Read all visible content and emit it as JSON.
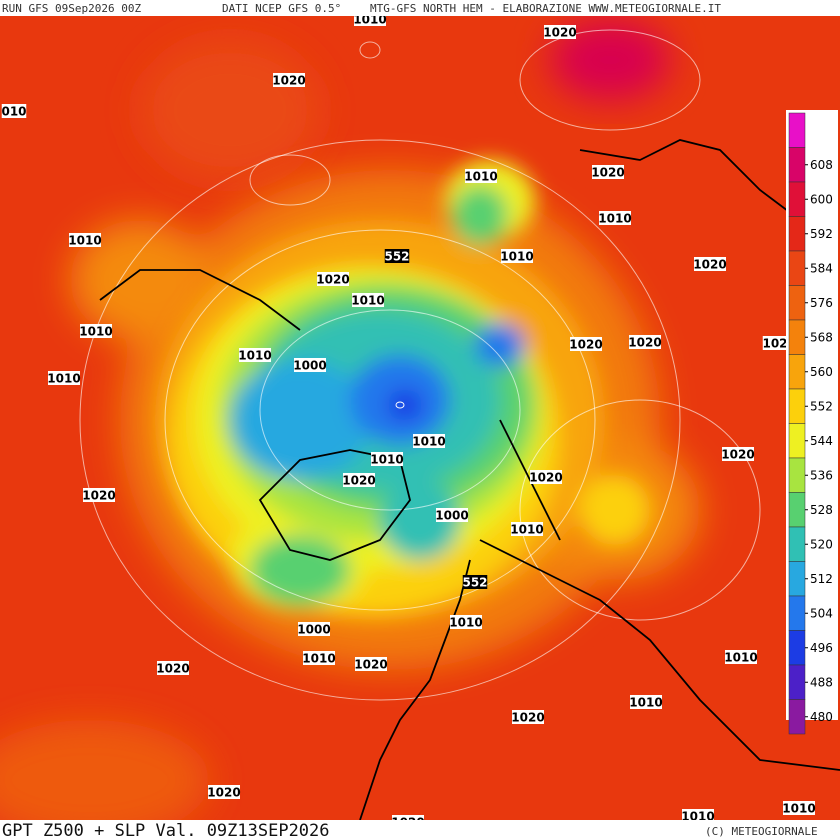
{
  "header": {
    "left": "RUN GFS 09Sep2026 00Z",
    "center": "DATI NCEP GFS 0.5°",
    "right": "MTG-GFS NORTH HEM - ELABORAZIONE WWW.METEOGIORNALE.IT"
  },
  "footer": {
    "title": "GPT Z500 + SLP Val. 09Z13SEP2026",
    "copyright": "(C) METEOGIORNALE"
  },
  "colorbar": {
    "ticks": [
      608,
      600,
      592,
      584,
      576,
      568,
      560,
      552,
      544,
      536,
      528,
      520,
      512,
      504,
      496,
      488,
      480
    ],
    "colors": [
      "#e810c8",
      "#d80468",
      "#e01038",
      "#e42818",
      "#ea4614",
      "#ee6210",
      "#f4820c",
      "#f8a40c",
      "#fcd00c",
      "#eef022",
      "#a8e440",
      "#58d070",
      "#30c0b4",
      "#28a8e0",
      "#2478ec",
      "#1c3ce4",
      "#4c20c8",
      "#8a1aa0"
    ]
  },
  "isobar_labels": [
    "1020",
    "010",
    "1010",
    "1020",
    "1010",
    "1020",
    "1010",
    "1010",
    "552",
    "1010",
    "1020",
    "1020",
    "1010",
    "1010",
    "1020",
    "1020",
    "102",
    "1010",
    "1000",
    "1010",
    "1010",
    "1010",
    "1020",
    "1020",
    "1020",
    "1020",
    "1000",
    "1010",
    "552",
    "1010",
    "1000",
    "1010",
    "1020",
    "1020",
    "1010",
    "1010",
    "1020",
    "1020",
    "1020",
    "1010",
    "1010"
  ]
}
